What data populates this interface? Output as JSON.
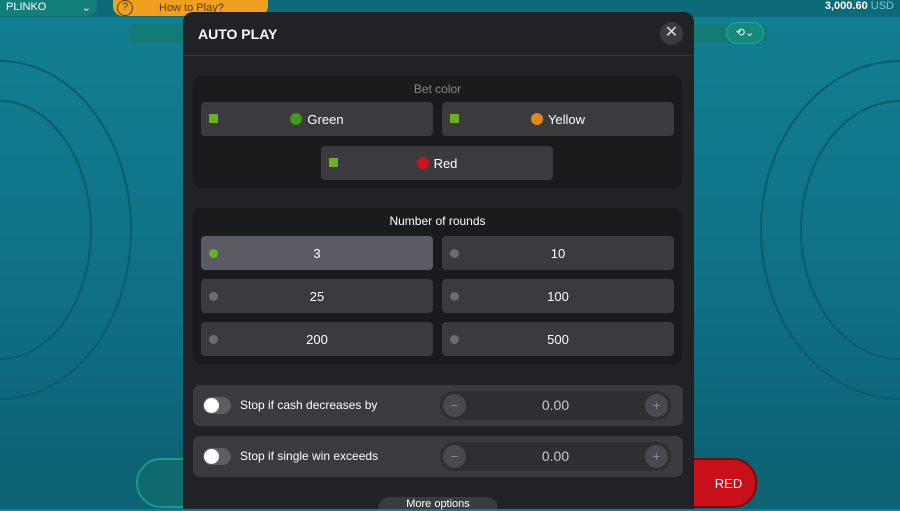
{
  "header": {
    "game": "PLINKO",
    "how_to_play": "How to Play?",
    "help_icon": "?",
    "balance": "3,000.60",
    "currency": "USD"
  },
  "game": {
    "red_button": "RED"
  },
  "modal": {
    "title": "AUTO PLAY",
    "close": "✕",
    "bet_color": {
      "title": "Bet color",
      "options": [
        {
          "label": "Green",
          "color": "#3f9a1a"
        },
        {
          "label": "Yellow",
          "color": "#e08a1a"
        },
        {
          "label": "Red",
          "color": "#d0101a"
        }
      ]
    },
    "rounds": {
      "title": "Number of rounds",
      "options": [
        "3",
        "10",
        "25",
        "100",
        "200",
        "500"
      ],
      "selected": "3"
    },
    "stops": [
      {
        "label": "Stop if cash decreases by",
        "value": "0.00",
        "enabled": false
      },
      {
        "label": "Stop if single win exceeds",
        "value": "0.00",
        "enabled": false
      }
    ],
    "more_options": "More options"
  },
  "colors": {
    "accent": "#6ab023",
    "modal_bg": "#222226"
  }
}
